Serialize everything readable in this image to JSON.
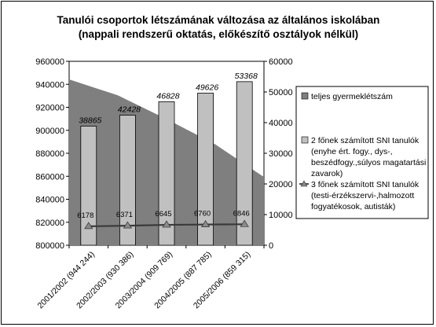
{
  "chart_data": {
    "type": "bar",
    "title": "Tanulói csoportok létszámának változása az általános iskolában",
    "subtitle": "(nappali rendszerű oktatás, előkészítő osztályok nélkül)",
    "categories": [
      "2001/2002 (944 244)",
      "2002/2003 (930 386)",
      "2003/2004 (909 769)",
      "2004/2005 (887 785)",
      "2005/2006 (859 315)"
    ],
    "left_axis": {
      "min": 800000,
      "max": 960000,
      "step": 20000,
      "ticks": [
        "800000",
        "820000",
        "840000",
        "860000",
        "880000",
        "900000",
        "920000",
        "940000",
        "960000"
      ]
    },
    "right_axis": {
      "min": 0,
      "max": 60000,
      "step": 10000,
      "ticks": [
        "0",
        "10000",
        "20000",
        "30000",
        "40000",
        "50000",
        "60000"
      ]
    },
    "series": [
      {
        "name": "teljes gyermeklétszám",
        "kind": "area",
        "axis": "left",
        "color": "#7f7f7f",
        "values": [
          944244,
          930386,
          909769,
          887785,
          859315
        ]
      },
      {
        "name": "2 főnek számított SNI tanulók (enyhe ért. fogy., dys-, beszédfogy.,súlyos magatartási zavarok)",
        "legend_lines": [
          "2 főnek számított SNI tanulók",
          "(enyhe ért. fogy., dys-,",
          "beszédfogy.,súlyos magatartási",
          "zavarok)"
        ],
        "kind": "bar",
        "axis": "right",
        "color": "#c0c0c0",
        "values": [
          38865,
          42428,
          46828,
          49626,
          53368
        ],
        "labels": [
          "38865",
          "42428",
          "46828",
          "49626",
          "53368"
        ]
      },
      {
        "name": "3 főnek számított SNI tanulók (testi-érzékszervi-,halmozott fogyatékosok, autisták)",
        "legend_lines": [
          "3 főnek számított SNI tanulók",
          "(testi-érzékszervi-,halmozott",
          "fogyatékosok, autisták)"
        ],
        "kind": "line",
        "axis": "right",
        "color": "#3a3a3a",
        "values": [
          6178,
          6371,
          6645,
          6760,
          6846
        ],
        "labels": [
          "6178",
          "6371",
          "6645",
          "6760",
          "6846"
        ]
      }
    ],
    "grid": false,
    "legend_position": "right"
  }
}
